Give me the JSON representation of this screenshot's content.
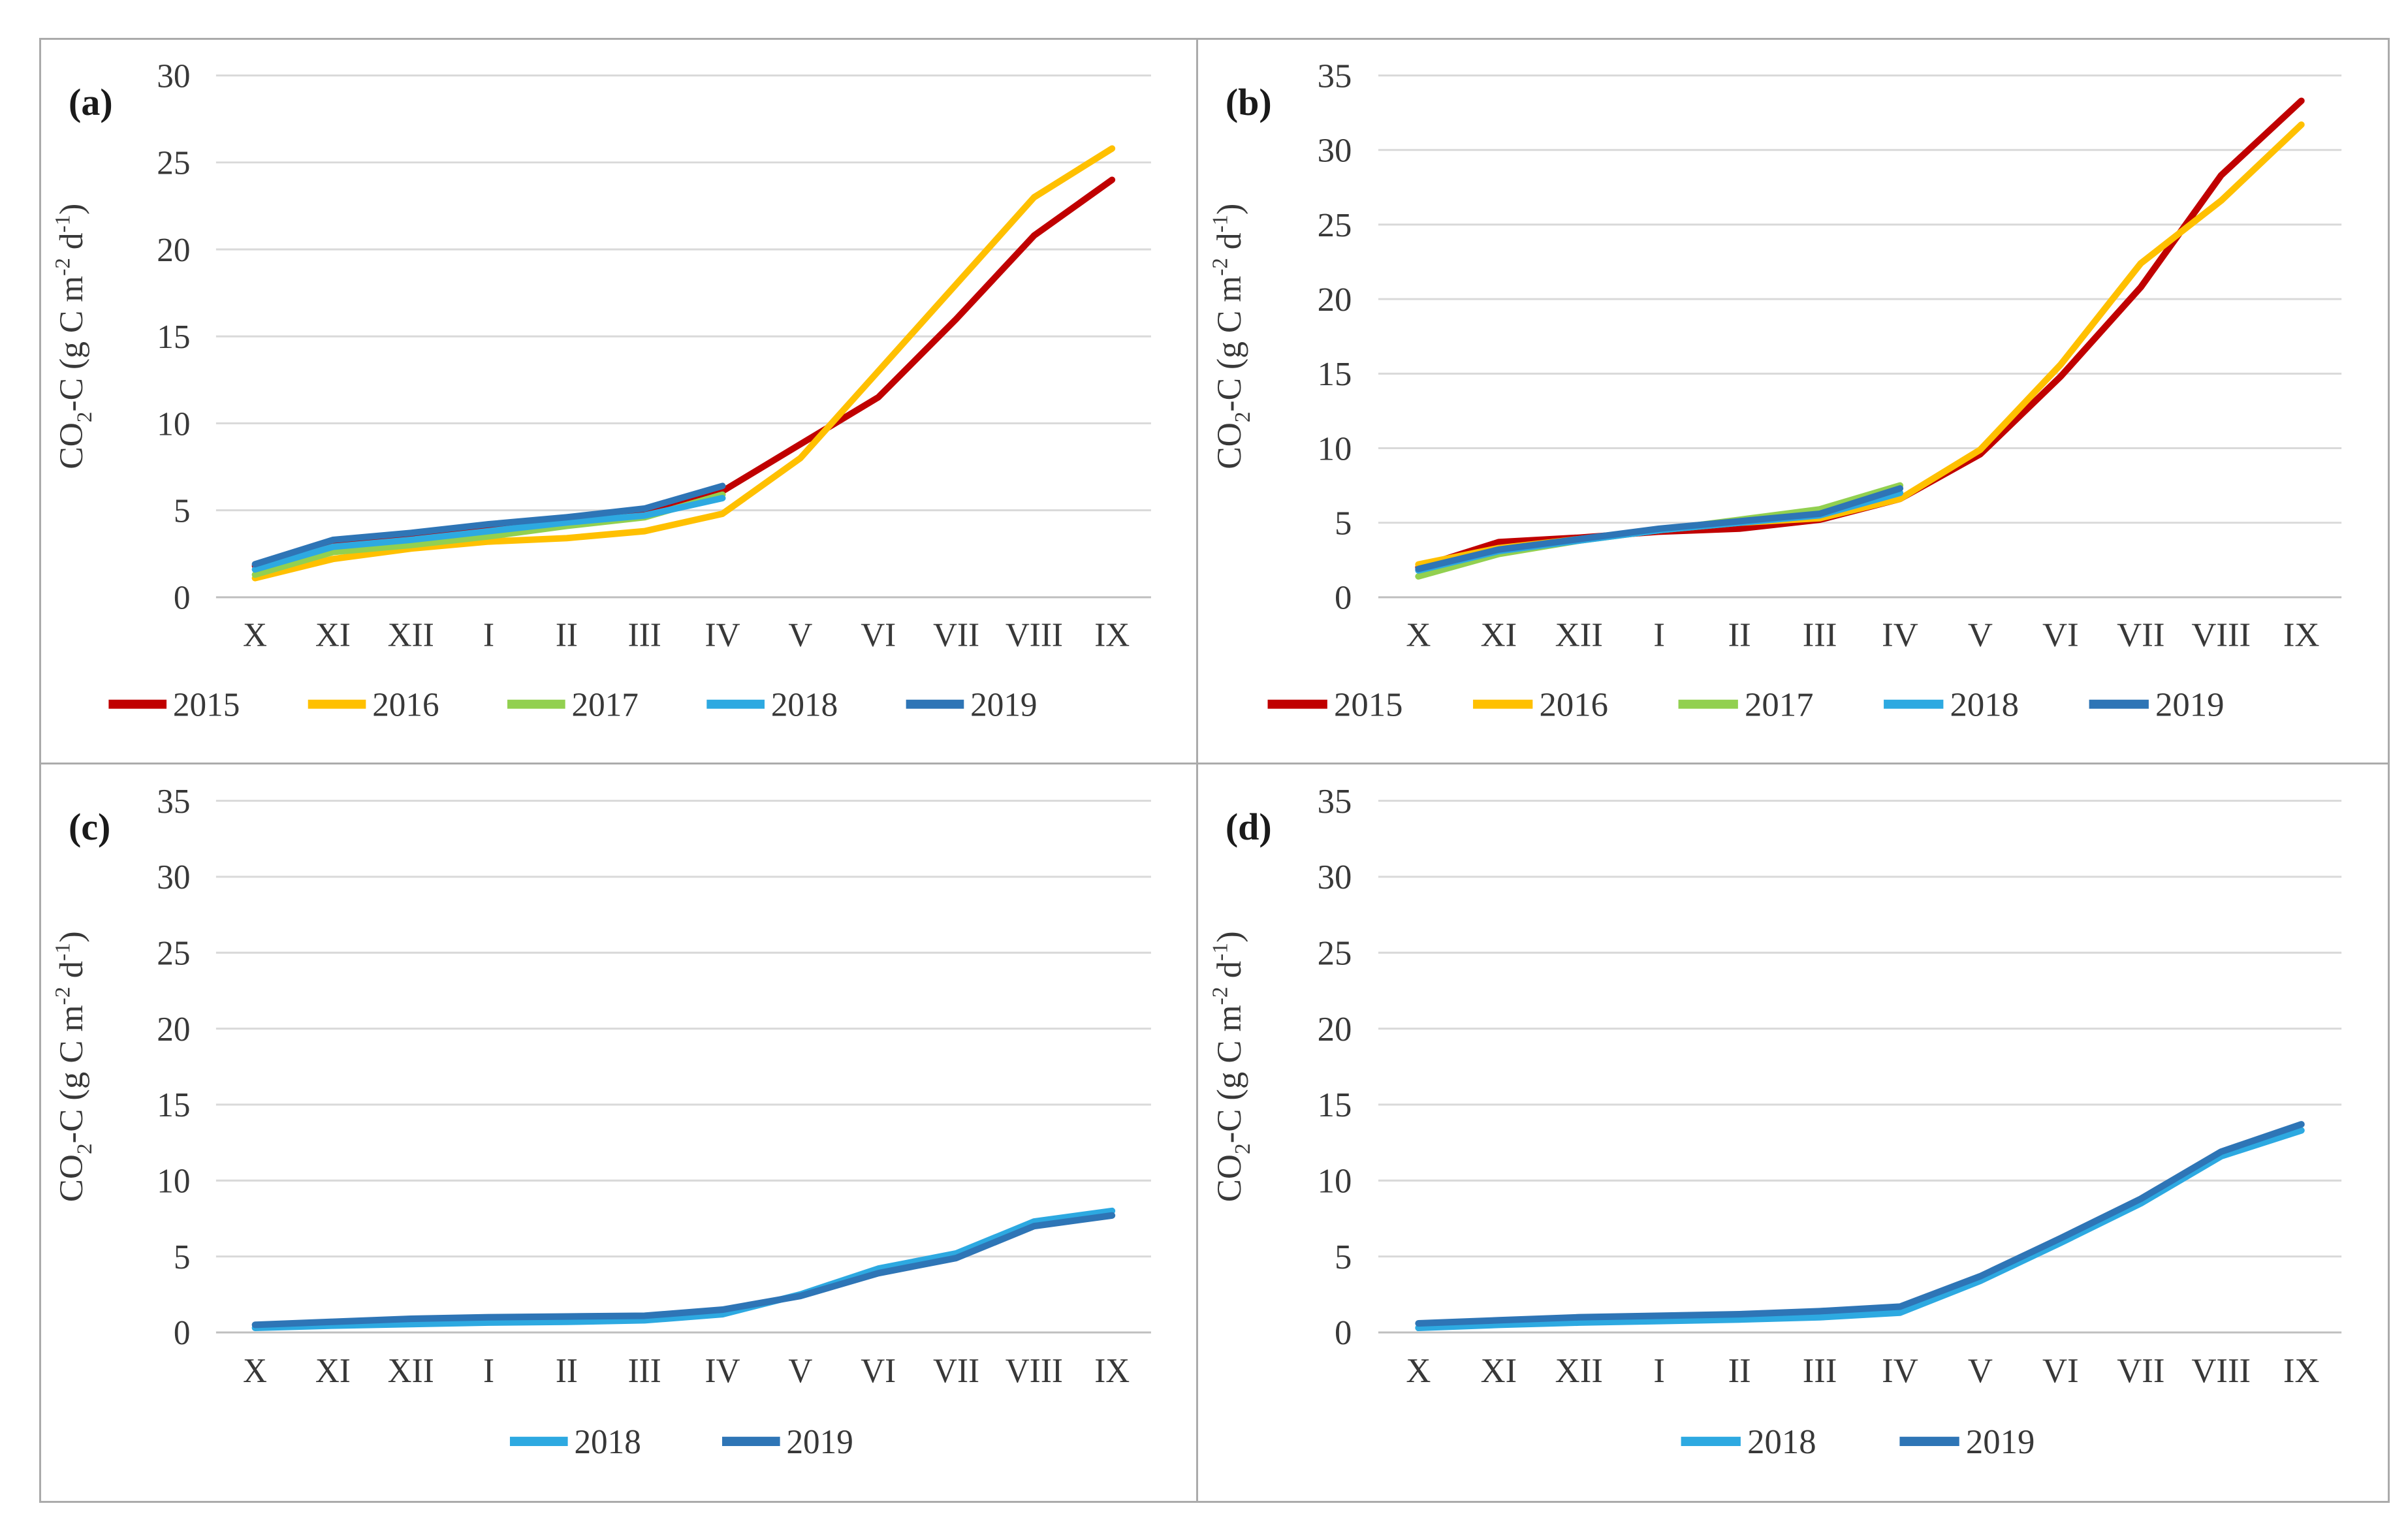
{
  "figure": {
    "background": "#FFFFFF",
    "border_color": "#ABABAB",
    "grid_color": "#D9D9D9",
    "axis_line_color": "#BFBFBF",
    "text_color": "#383838",
    "series_colors": {
      "2015": "#C00000",
      "2016": "#FFC000",
      "2017": "#92D050",
      "2018": "#2DA9E1",
      "2019": "#2E75B6"
    }
  },
  "chart_data": [
    {
      "id": "a",
      "panel_label": "(a)",
      "type": "line",
      "title": "",
      "xlabel": "",
      "ylabel": "CO2-C (g C m-2 d-1)",
      "ylabel_parts": [
        {
          "text": "CO"
        },
        {
          "text": "2",
          "script": "sub"
        },
        {
          "text": "-C (g C m"
        },
        {
          "text": "-2",
          "script": "sup"
        },
        {
          "text": " d"
        },
        {
          "text": "-1",
          "script": "sup"
        },
        {
          "text": ")"
        }
      ],
      "categories": [
        "X",
        "XI",
        "XII",
        "I",
        "II",
        "III",
        "IV",
        "V",
        "VI",
        "VII",
        "VIII",
        "IX"
      ],
      "ylim": [
        0,
        30
      ],
      "ytick_step": 5,
      "yticks": [
        0,
        5,
        10,
        15,
        20,
        25,
        30
      ],
      "grid": true,
      "legend_position": "bottom",
      "legend": [
        "2015",
        "2016",
        "2017",
        "2018",
        "2019"
      ],
      "series": [
        {
          "name": "2015",
          "color": "#C00000",
          "values": [
            1.8,
            3.2,
            3.6,
            4.1,
            4.5,
            4.9,
            6.1,
            8.8,
            11.5,
            16.0,
            20.8,
            24.0
          ]
        },
        {
          "name": "2016",
          "color": "#FFC000",
          "values": [
            1.1,
            2.2,
            2.8,
            3.2,
            3.4,
            3.8,
            4.8,
            8.0,
            13.0,
            18.0,
            23.0,
            25.8
          ]
        },
        {
          "name": "2017",
          "color": "#92D050",
          "values": [
            1.3,
            2.6,
            3.0,
            3.5,
            4.1,
            4.6,
            5.9
          ]
        },
        {
          "name": "2018",
          "color": "#2DA9E1",
          "values": [
            1.6,
            2.9,
            3.3,
            3.8,
            4.3,
            4.7,
            5.7
          ]
        },
        {
          "name": "2019",
          "color": "#2E75B6",
          "values": [
            1.9,
            3.3,
            3.7,
            4.2,
            4.6,
            5.1,
            6.4
          ]
        }
      ]
    },
    {
      "id": "b",
      "panel_label": "(b)",
      "type": "line",
      "title": "",
      "xlabel": "",
      "ylabel": "CO2-C (g C m-2 d-1)",
      "ylabel_parts": [
        {
          "text": "CO"
        },
        {
          "text": "2",
          "script": "sub"
        },
        {
          "text": "-C (g C m"
        },
        {
          "text": "-2",
          "script": "sup"
        },
        {
          "text": " d"
        },
        {
          "text": "-1",
          "script": "sup"
        },
        {
          "text": ")"
        }
      ],
      "categories": [
        "X",
        "XI",
        "XII",
        "I",
        "II",
        "III",
        "IV",
        "V",
        "VI",
        "VII",
        "VIII",
        "IX"
      ],
      "ylim": [
        0,
        35
      ],
      "ytick_step": 5,
      "yticks": [
        0,
        5,
        10,
        15,
        20,
        25,
        30,
        35
      ],
      "grid": true,
      "legend_position": "bottom",
      "legend": [
        "2015",
        "2016",
        "2017",
        "2018",
        "2019"
      ],
      "series": [
        {
          "name": "2015",
          "color": "#C00000",
          "values": [
            2.0,
            3.7,
            4.0,
            4.4,
            4.6,
            5.2,
            6.6,
            9.6,
            14.8,
            20.8,
            28.3,
            33.3
          ]
        },
        {
          "name": "2016",
          "color": "#FFC000",
          "values": [
            2.2,
            3.3,
            3.9,
            4.5,
            5.0,
            5.3,
            6.6,
            9.9,
            15.6,
            22.4,
            26.6,
            31.7
          ]
        },
        {
          "name": "2017",
          "color": "#92D050",
          "values": [
            1.4,
            2.9,
            3.8,
            4.5,
            5.2,
            5.9,
            7.5
          ]
        },
        {
          "name": "2018",
          "color": "#2DA9E1",
          "values": [
            1.8,
            3.1,
            3.8,
            4.5,
            5.0,
            5.5,
            7.0
          ]
        },
        {
          "name": "2019",
          "color": "#2E75B6",
          "values": [
            1.9,
            3.2,
            3.9,
            4.6,
            5.1,
            5.6,
            7.3
          ]
        }
      ]
    },
    {
      "id": "c",
      "panel_label": "(c)",
      "type": "line",
      "title": "",
      "xlabel": "",
      "ylabel": "CO2-C (g C m-2 d-1)",
      "ylabel_parts": [
        {
          "text": "CO"
        },
        {
          "text": "2",
          "script": "sub"
        },
        {
          "text": "-C (g C m"
        },
        {
          "text": "-2",
          "script": "sup"
        },
        {
          "text": " d"
        },
        {
          "text": "-1",
          "script": "sup"
        },
        {
          "text": ")"
        }
      ],
      "categories": [
        "X",
        "XI",
        "XII",
        "I",
        "II",
        "III",
        "IV",
        "V",
        "VI",
        "VII",
        "VIII",
        "IX"
      ],
      "ylim": [
        0,
        35
      ],
      "ytick_step": 5,
      "yticks": [
        0,
        5,
        10,
        15,
        20,
        25,
        30,
        35
      ],
      "grid": true,
      "legend_position": "bottom",
      "legend": [
        "2018",
        "2019"
      ],
      "series": [
        {
          "name": "2018",
          "color": "#2DA9E1",
          "values": [
            0.3,
            0.45,
            0.55,
            0.65,
            0.7,
            0.8,
            1.2,
            2.5,
            4.2,
            5.2,
            7.3,
            8.0
          ]
        },
        {
          "name": "2019",
          "color": "#2E75B6",
          "values": [
            0.5,
            0.7,
            0.9,
            1.0,
            1.05,
            1.1,
            1.5,
            2.4,
            3.9,
            4.9,
            7.0,
            7.7
          ]
        }
      ]
    },
    {
      "id": "d",
      "panel_label": "(d)",
      "type": "line",
      "title": "",
      "xlabel": "",
      "ylabel": "CO2-C (g C m-2 d-1)",
      "ylabel_parts": [
        {
          "text": "CO"
        },
        {
          "text": "2",
          "script": "sub"
        },
        {
          "text": "-C (g C m"
        },
        {
          "text": "-2",
          "script": "sup"
        },
        {
          "text": " d"
        },
        {
          "text": "-1",
          "script": "sup"
        },
        {
          "text": ")"
        }
      ],
      "categories": [
        "X",
        "XI",
        "XII",
        "I",
        "II",
        "III",
        "IV",
        "V",
        "VI",
        "VII",
        "VIII",
        "IX"
      ],
      "ylim": [
        0,
        35
      ],
      "ytick_step": 5,
      "yticks": [
        0,
        5,
        10,
        15,
        20,
        25,
        30,
        35
      ],
      "grid": true,
      "legend_position": "bottom",
      "legend": [
        "2018",
        "2019"
      ],
      "series": [
        {
          "name": "2018",
          "color": "#2DA9E1",
          "values": [
            0.3,
            0.5,
            0.65,
            0.75,
            0.85,
            1.0,
            1.3,
            3.4,
            5.9,
            8.5,
            11.6,
            13.3
          ]
        },
        {
          "name": "2019",
          "color": "#2E75B6",
          "values": [
            0.6,
            0.8,
            1.0,
            1.1,
            1.2,
            1.4,
            1.7,
            3.7,
            6.2,
            8.8,
            11.9,
            13.7
          ]
        }
      ]
    }
  ]
}
